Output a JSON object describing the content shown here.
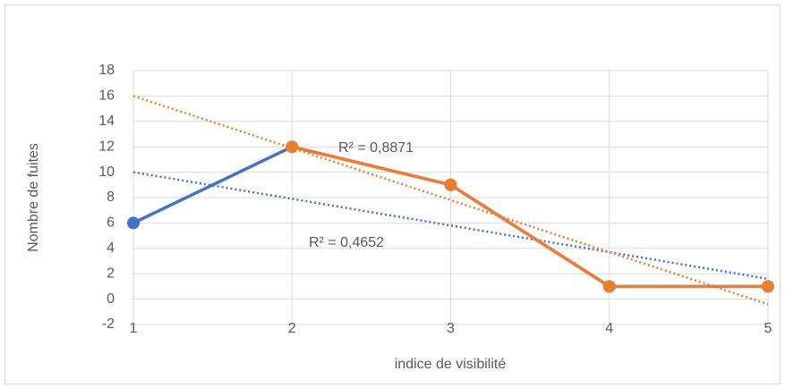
{
  "chart_data": {
    "type": "line",
    "x": [
      1,
      2,
      3,
      4,
      5
    ],
    "series": [
      {
        "color": "#4472c4",
        "values": [
          6,
          12,
          9,
          1,
          1
        ],
        "trendline": true
      },
      {
        "color": "#ed7d31",
        "values": [
          null,
          12,
          9,
          1,
          1
        ],
        "trendline": true
      }
    ],
    "xlim": [
      1,
      5
    ],
    "xticks": [
      1,
      2,
      3,
      4,
      5
    ],
    "ylim": [
      -2,
      18
    ],
    "yticks": [
      -2,
      0,
      2,
      4,
      6,
      8,
      10,
      12,
      14,
      16,
      18
    ],
    "grid": true,
    "xlabel": "indice de visibilité",
    "ylabel": "Nombre de fuites",
    "annotations": [
      "R² = 0,8871",
      "R² = 0,4652"
    ]
  }
}
